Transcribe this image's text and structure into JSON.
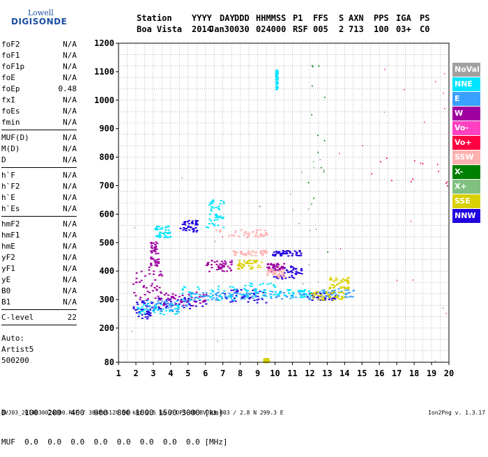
{
  "logo": {
    "line1": "Lowell",
    "line2": "DIGISONDE"
  },
  "header": {
    "titles": [
      "Station",
      "YYYY",
      "DAY",
      "DDD",
      "HHMMSS",
      "P1",
      "FFS",
      "S",
      "AXN",
      "PPS",
      "IGA",
      "PS"
    ],
    "values": [
      "Boa Vista",
      "2014",
      "Jan30",
      "030",
      "024000",
      "RSF",
      "005",
      "2",
      "713",
      "100",
      "03+",
      "C0"
    ]
  },
  "params": [
    [
      {
        "name": "foF2",
        "value": "N/A"
      },
      {
        "name": "foF1",
        "value": "N/A"
      },
      {
        "name": "foF1p",
        "value": "N/A"
      },
      {
        "name": "foE",
        "value": "N/A"
      },
      {
        "name": "foEp",
        "value": "0.48"
      },
      {
        "name": "fxI",
        "value": "N/A"
      },
      {
        "name": "foEs",
        "value": "N/A"
      },
      {
        "name": "fmin",
        "value": "N/A"
      }
    ],
    [
      {
        "name": "MUF(D)",
        "value": "N/A"
      },
      {
        "name": "M(D)",
        "value": "N/A"
      },
      {
        "name": "D",
        "value": "N/A"
      }
    ],
    [
      {
        "name": "h`F",
        "value": "N/A"
      },
      {
        "name": "h`F2",
        "value": "N/A"
      },
      {
        "name": "h`E",
        "value": "N/A"
      },
      {
        "name": "h`Es",
        "value": "N/A"
      }
    ],
    [
      {
        "name": "hmF2",
        "value": "N/A"
      },
      {
        "name": "hmF1",
        "value": "N/A"
      },
      {
        "name": "hmE",
        "value": "N/A"
      },
      {
        "name": "yF2",
        "value": "N/A"
      },
      {
        "name": "yF1",
        "value": "N/A"
      },
      {
        "name": "yE",
        "value": "N/A"
      },
      {
        "name": "B0",
        "value": "N/A"
      },
      {
        "name": "B1",
        "value": "N/A"
      }
    ],
    [
      {
        "name": "C-level",
        "value": "22"
      }
    ]
  ],
  "auto": [
    "Auto:",
    "Artist5",
    "500200"
  ],
  "legend": [
    {
      "label": "NoVal",
      "color": "#a0a0a0"
    },
    {
      "label": "NNE",
      "color": "#00e5ff"
    },
    {
      "label": "E",
      "color": "#3aa0ff"
    },
    {
      "label": "W",
      "color": "#a000a0"
    },
    {
      "label": "Vo-",
      "color": "#ff40c0"
    },
    {
      "label": "Vo+",
      "color": "#ff0040"
    },
    {
      "label": "SSW",
      "color": "#ffb0b0"
    },
    {
      "label": "X-",
      "color": "#008000"
    },
    {
      "label": "X+",
      "color": "#80c080"
    },
    {
      "label": "SSE",
      "color": "#d8d000"
    },
    {
      "label": "NNW",
      "color": "#2000e0"
    }
  ],
  "footer": {
    "d_label": "D",
    "d_values": [
      "100",
      "200",
      "400",
      "600",
      "800",
      "1000",
      "1500",
      "3000"
    ],
    "d_unit": "[km]",
    "muf_label": "MUF",
    "muf_values": [
      "0.0",
      "0.0",
      "0.0",
      "0.0",
      "0.0",
      "0.0",
      "0.0",
      "0.0"
    ],
    "muf_unit": "[MHz]"
  },
  "bottom_line": "BVJ03_2014030024000.RSF / 384fx512h 50 kHz 2.5 km / DPS-4D BVJ03 003 / 2.8 N 299.3 E",
  "version": "Ion2Png v. 1.3.17",
  "chart_data": {
    "type": "scatter",
    "xlim": [
      1,
      20
    ],
    "ylim": [
      80,
      1200
    ],
    "x_ticks": [
      1,
      2,
      3,
      4,
      5,
      6,
      7,
      8,
      9,
      10,
      11,
      12,
      13,
      14,
      15,
      16,
      17,
      18,
      19,
      20
    ],
    "y_ticks": [
      80,
      200,
      300,
      400,
      500,
      600,
      700,
      800,
      900,
      1000,
      1100,
      1200
    ],
    "grid": true,
    "legend_position": "right",
    "series": [
      {
        "name": "NNW",
        "color": "#2000e0",
        "clusters": [
          [
            1.8,
            3.0,
            235,
            300
          ],
          [
            3.0,
            6.0,
            265,
            310
          ],
          [
            7.0,
            9.5,
            290,
            340
          ],
          [
            9.8,
            11.5,
            375,
            420
          ],
          [
            9.8,
            11.5,
            455,
            475
          ],
          [
            11.8,
            13.5,
            300,
            330
          ],
          [
            4.5,
            5.5,
            540,
            580
          ]
        ]
      },
      {
        "name": "W",
        "color": "#a000a0",
        "clusters": [
          [
            1.8,
            3.5,
            300,
            420
          ],
          [
            2.8,
            3.3,
            420,
            510
          ],
          [
            3.5,
            6.0,
            280,
            330
          ],
          [
            6.0,
            7.5,
            400,
            440
          ],
          [
            9.5,
            10.5,
            400,
            430
          ]
        ]
      },
      {
        "name": "NNE",
        "color": "#00e5ff",
        "clusters": [
          [
            2.0,
            4.5,
            250,
            290
          ],
          [
            4.5,
            8.0,
            300,
            350
          ],
          [
            8.0,
            10.0,
            310,
            360
          ],
          [
            10.0,
            12.0,
            310,
            340
          ],
          [
            6.0,
            7.0,
            555,
            660
          ],
          [
            3.0,
            4.0,
            520,
            560
          ],
          [
            10.0,
            10.1,
            1040,
            1110
          ]
        ]
      },
      {
        "name": "E",
        "color": "#3aa0ff",
        "clusters": [
          [
            2.5,
            5.0,
            260,
            300
          ],
          [
            5.0,
            8.0,
            300,
            330
          ],
          [
            8.0,
            12.0,
            300,
            330
          ],
          [
            12.5,
            14.5,
            310,
            340
          ]
        ]
      },
      {
        "name": "SSE",
        "color": "#d8d000",
        "clusters": [
          [
            7.8,
            9.2,
            410,
            440
          ],
          [
            12.0,
            14.0,
            300,
            330
          ],
          [
            13.0,
            14.2,
            340,
            380
          ],
          [
            9.3,
            9.6,
            80,
            95
          ]
        ]
      },
      {
        "name": "SSW",
        "color": "#ffb0b0",
        "clusters": [
          [
            6.5,
            9.5,
            520,
            550
          ],
          [
            7.5,
            9.5,
            455,
            475
          ],
          [
            9.5,
            10.5,
            380,
            410
          ]
        ]
      },
      {
        "name": "Vo-",
        "color": "#ff40c0",
        "clusters": [
          [
            13.5,
            20.0,
            250,
            1150
          ]
        ]
      },
      {
        "name": "Vo+",
        "color": "#ff0040",
        "clusters": [
          [
            15.5,
            20.0,
            700,
            800
          ]
        ]
      },
      {
        "name": "X-",
        "color": "#008000",
        "clusters": [
          [
            11.8,
            13.0,
            350,
            1150
          ]
        ]
      },
      {
        "name": "X+",
        "color": "#80c080",
        "clusters": [
          [
            10.5,
            13.0,
            300,
            800
          ]
        ]
      },
      {
        "name": "NoVal",
        "color": "#a0a0a0",
        "clusters": [
          [
            1.5,
            20.0,
            80,
            1200
          ]
        ]
      }
    ]
  }
}
